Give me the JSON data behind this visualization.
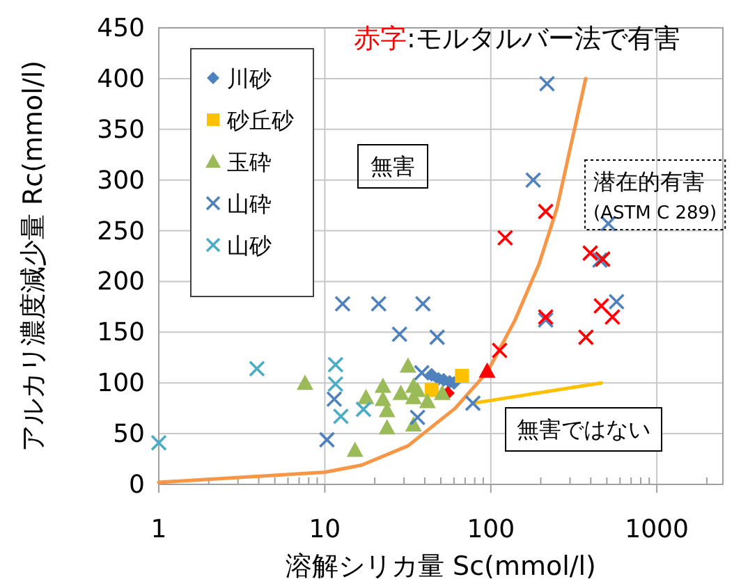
{
  "chart_data": {
    "type": "scatter",
    "xlabel": "溶解シリカ量 Sc(mmol/l)",
    "ylabel": "アルカリ濃度減少量 Rc(mmol/l)",
    "log": "x",
    "xlim": [
      1,
      2500
    ],
    "xticks": [
      1,
      10,
      100,
      1000
    ],
    "ylim": [
      0,
      450
    ],
    "yticks": [
      0,
      50,
      100,
      150,
      200,
      250,
      300,
      350,
      400,
      450
    ],
    "grid": true,
    "legend": "top left",
    "annotations": [
      "赤字",
      ":モルタルバー法で有害",
      "無害",
      "潜在的有害\n(ASTM C 289)",
      "無害ではない"
    ],
    "series": [
      {
        "name": "川砂",
        "marker": "diamond",
        "color": "#4f81bd",
        "x": [
          44,
          48.4,
          52,
          56.5,
          60,
          55
        ],
        "values": [
          108,
          104,
          103,
          101,
          100,
          90
        ],
        "colors": [
          "#4f81bd",
          "#4f81bd",
          "#4f81bd",
          "#4f81bd",
          "#4f81bd",
          "#ff0000"
        ]
      },
      {
        "name": "砂丘砂",
        "marker": "square",
        "color": "#ffc000",
        "x": [
          44,
          67
        ],
        "values": [
          93,
          107
        ]
      },
      {
        "name": "玉砕",
        "marker": "triangle",
        "color": "#9bbb59",
        "x": [
          7.6,
          15.2,
          17.7,
          22.4,
          22.4,
          23.7,
          23.7,
          28.7,
          31.7,
          34.2,
          34.2,
          36.2,
          34.2,
          41.5,
          51,
          95
        ],
        "values": [
          100,
          34,
          86,
          97,
          84,
          73,
          56,
          90,
          117,
          97,
          86,
          93,
          59,
          82,
          90,
          112
        ],
        "colors": [
          "#9bbb59",
          "#9bbb59",
          "#9bbb59",
          "#9bbb59",
          "#9bbb59",
          "#9bbb59",
          "#9bbb59",
          "#9bbb59",
          "#9bbb59",
          "#9bbb59",
          "#9bbb59",
          "#9bbb59",
          "#9bbb59",
          "#9bbb59",
          "#9bbb59",
          "#ff0000"
        ]
      },
      {
        "name": "山砕",
        "marker": "cross",
        "color": "#4f81bd",
        "x": [
          12.8,
          21.1,
          39,
          28.2,
          47.5,
          10.3,
          11.4,
          38.4,
          36.2,
          78,
          214,
          510,
          454,
          572,
          218,
          180,
          214,
          122,
          397,
          472,
          214,
          463,
          540,
          374,
          113
        ],
        "values": [
          178,
          178,
          178,
          148,
          145,
          44,
          84,
          110,
          66,
          80,
          162,
          257,
          221,
          180,
          395,
          300,
          269,
          243,
          228,
          222,
          165,
          176,
          165,
          145,
          132
        ],
        "colors": [
          "#4f81bd",
          "#4f81bd",
          "#4f81bd",
          "#4f81bd",
          "#4f81bd",
          "#4f81bd",
          "#4f81bd",
          "#4f81bd",
          "#4f81bd",
          "#4f81bd",
          "#4f81bd",
          "#4f81bd",
          "#4f81bd",
          "#4f81bd",
          "#4f81bd",
          "#4f81bd",
          "#ff0000",
          "#ff0000",
          "#ff0000",
          "#ff0000",
          "#ff0000",
          "#ff0000",
          "#ff0000",
          "#ff0000",
          "#ff0000"
        ]
      },
      {
        "name": "山砂",
        "marker": "cross",
        "color": "#4bacc6",
        "x": [
          1,
          3.9,
          11.6,
          11.6,
          12.5,
          17.1
        ],
        "values": [
          41,
          114,
          118,
          99,
          67,
          74
        ]
      },
      {
        "type": "line",
        "marker": "none",
        "color": "#f79646",
        "x": [
          1,
          10,
          16.7,
          31.7,
          61,
          95.5,
          140,
          195,
          250,
          373
        ],
        "values": [
          2,
          12,
          19,
          38,
          75,
          111,
          162,
          217,
          272,
          400
        ]
      },
      {
        "type": "line",
        "marker": "none",
        "color": "#ffc000",
        "x": [
          78,
          463
        ],
        "values": [
          80,
          100
        ]
      }
    ]
  }
}
